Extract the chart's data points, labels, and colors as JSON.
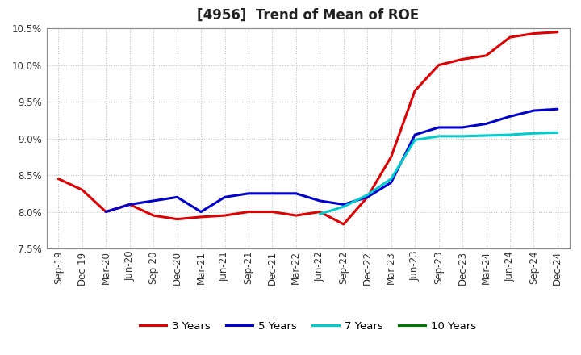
{
  "title": "[4956]  Trend of Mean of ROE",
  "ylim": [
    0.075,
    0.105
  ],
  "yticks": [
    0.075,
    0.08,
    0.085,
    0.09,
    0.095,
    0.1,
    0.105
  ],
  "x_labels": [
    "Sep-19",
    "Dec-19",
    "Mar-20",
    "Jun-20",
    "Sep-20",
    "Dec-20",
    "Mar-21",
    "Jun-21",
    "Sep-21",
    "Dec-21",
    "Mar-22",
    "Jun-22",
    "Sep-22",
    "Dec-22",
    "Mar-23",
    "Jun-23",
    "Sep-23",
    "Dec-23",
    "Mar-24",
    "Jun-24",
    "Sep-24",
    "Dec-24"
  ],
  "series": {
    "3 Years": {
      "color": "#dd0000",
      "values": [
        0.0845,
        0.083,
        0.08,
        0.081,
        0.0795,
        0.079,
        0.0793,
        0.0795,
        0.08,
        0.08,
        0.0795,
        0.08,
        0.0783,
        0.082,
        0.0875,
        0.0965,
        0.1,
        0.1008,
        0.1013,
        0.1038,
        0.1043,
        0.1045
      ]
    },
    "5 Years": {
      "color": "#0000cc",
      "values": [
        null,
        null,
        0.08,
        0.081,
        0.0815,
        0.082,
        0.08,
        0.082,
        0.0825,
        0.0825,
        0.0825,
        0.0815,
        0.081,
        0.082,
        0.084,
        0.0905,
        0.0915,
        0.0915,
        0.092,
        0.093,
        0.0938,
        0.094
      ]
    },
    "7 Years": {
      "color": "#00cccc",
      "values": [
        null,
        null,
        null,
        null,
        null,
        null,
        null,
        null,
        null,
        null,
        null,
        0.0797,
        0.0807,
        0.0823,
        0.0845,
        0.0898,
        0.0903,
        0.0903,
        0.0904,
        0.0905,
        0.0907,
        0.0908
      ]
    },
    "10 Years": {
      "color": "#007700",
      "values": [
        null,
        null,
        null,
        null,
        null,
        null,
        null,
        null,
        null,
        null,
        null,
        null,
        null,
        null,
        null,
        null,
        null,
        null,
        null,
        null,
        null,
        null
      ]
    }
  },
  "background_color": "#ffffff",
  "grid_color": "#bbbbbb",
  "title_fontsize": 12,
  "tick_fontsize": 8.5,
  "legend_fontsize": 9.5,
  "legend_labels": [
    "3 Years",
    "5 Years",
    "7 Years",
    "10 Years"
  ],
  "legend_colors": [
    "#dd0000",
    "#0000cc",
    "#00cccc",
    "#007700"
  ]
}
